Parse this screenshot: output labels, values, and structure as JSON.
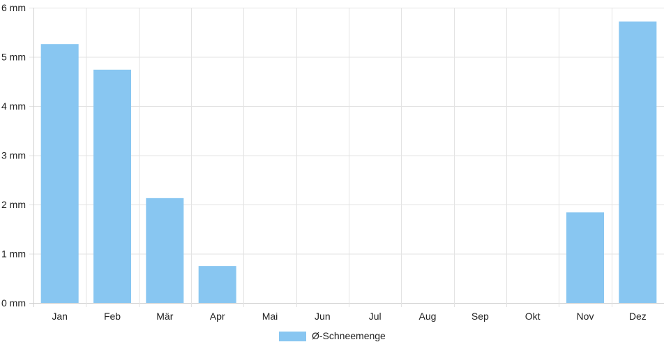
{
  "chart_data": {
    "type": "bar",
    "categories": [
      "Jan",
      "Feb",
      "Mär",
      "Apr",
      "Mai",
      "Jun",
      "Jul",
      "Aug",
      "Sep",
      "Okt",
      "Nov",
      "Dez"
    ],
    "series": [
      {
        "name": "Ø-Schneemenge",
        "color": "#88c6f1",
        "values": [
          5.26,
          4.74,
          2.13,
          0.75,
          0,
          0,
          0,
          0,
          0,
          0,
          1.84,
          5.72
        ]
      }
    ],
    "ylim": [
      0,
      6
    ],
    "yticks": [
      0,
      1,
      2,
      3,
      4,
      5,
      6
    ],
    "y_unit": "mm",
    "ytick_labels": [
      "0 mm",
      "1 mm",
      "2 mm",
      "3 mm",
      "4 mm",
      "5 mm",
      "6 mm"
    ],
    "grid": true,
    "legend_position": "bottom-center"
  }
}
